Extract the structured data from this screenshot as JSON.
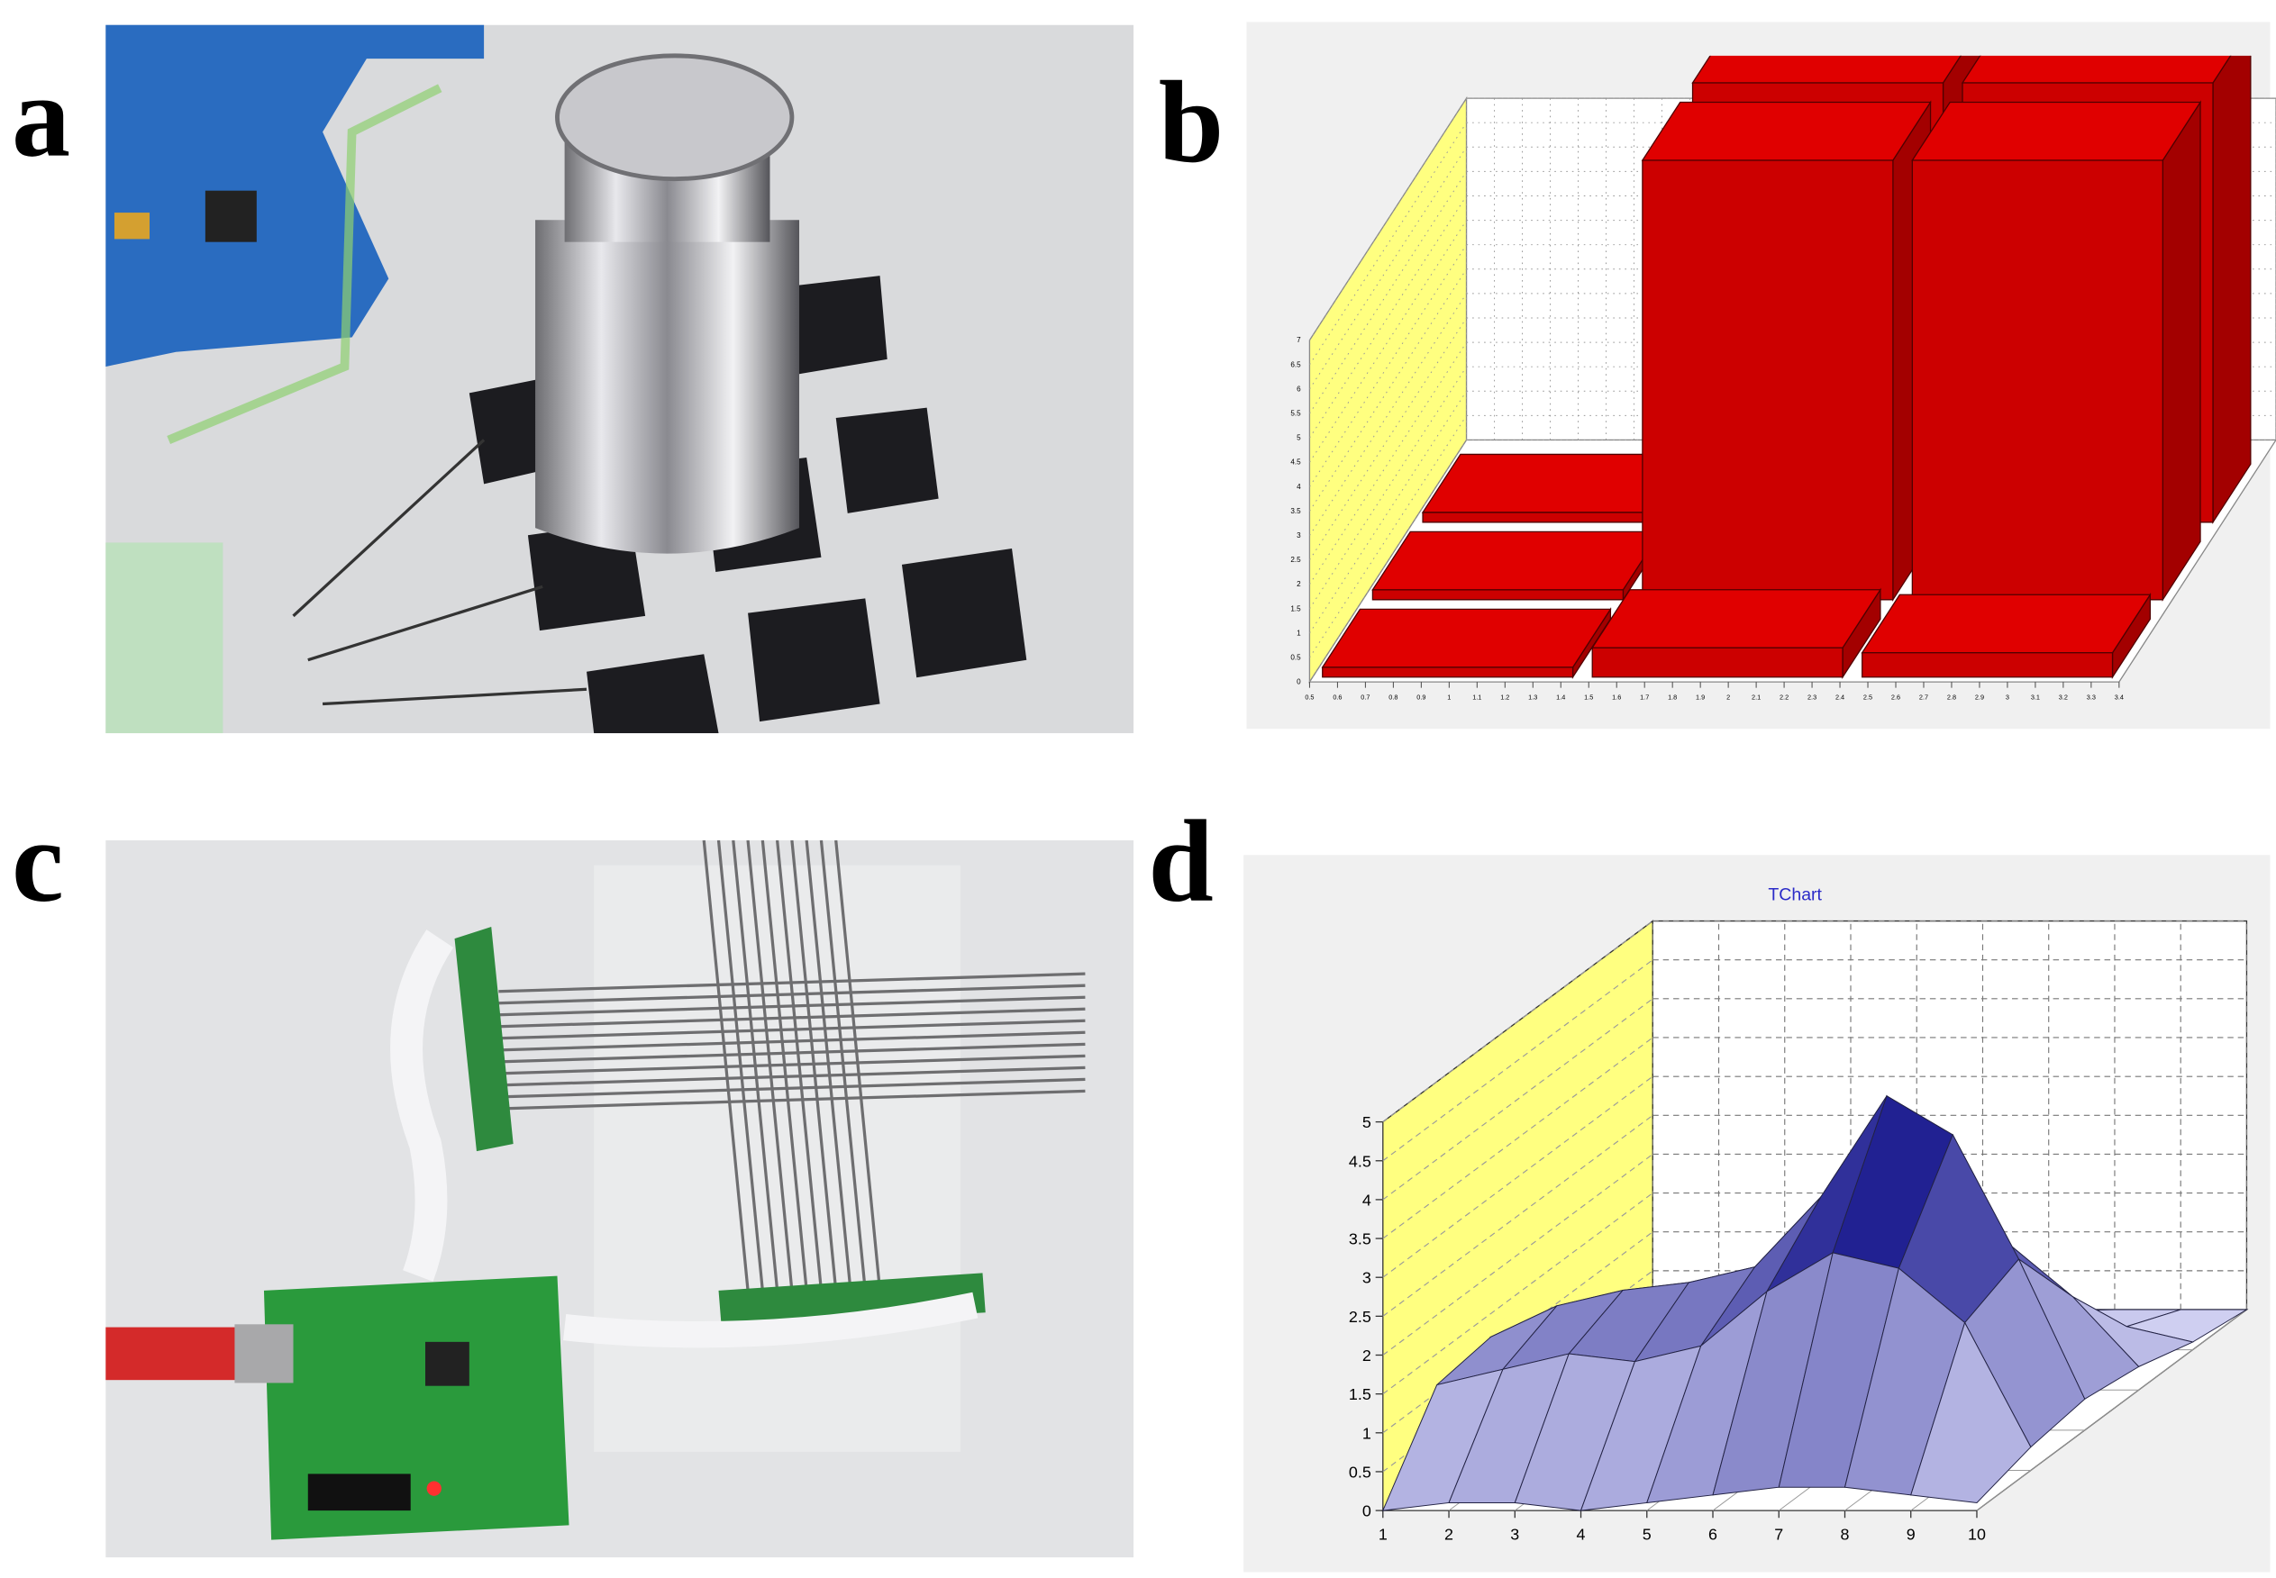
{
  "panel_labels": [
    "a",
    "b",
    "c",
    "d"
  ],
  "chart_data": [
    {
      "type": "bar3d",
      "color": "#cc0000",
      "ylim": [
        0,
        7
      ],
      "yticks": [
        0,
        0.5,
        1,
        1.5,
        2,
        2.5,
        3,
        3.5,
        4,
        4.5,
        5,
        5.5,
        6,
        6.5,
        7
      ],
      "xlim": [
        0.5,
        3.4
      ],
      "xticks": [
        0.5,
        0.6,
        0.7,
        0.8,
        0.9,
        1,
        1.1,
        1.2,
        1.3,
        1.4,
        1.5,
        1.6,
        1.7,
        1.8,
        1.9,
        2,
        2.1,
        2.2,
        2.3,
        2.4,
        2.5,
        2.6,
        2.7,
        2.8,
        2.9,
        3,
        3.1,
        3.2,
        3.3,
        3.4
      ],
      "values": [
        [
          0.2,
          0.6,
          0.5
        ],
        [
          0.2,
          9,
          9
        ],
        [
          0.2,
          9,
          9
        ]
      ]
    },
    {
      "type": "surface",
      "title": "TChart",
      "color": "#000080",
      "x": [
        1,
        2,
        3,
        4,
        5,
        6,
        7,
        8,
        9,
        10
      ],
      "xlim": [
        1,
        10
      ],
      "xticks": [
        1,
        2,
        3,
        4,
        5,
        6,
        7,
        8,
        9,
        10
      ],
      "ylim": [
        0,
        5
      ],
      "yticks": [
        0,
        0.5,
        1,
        1.5,
        2,
        2.5,
        3,
        3.5,
        4,
        4.5,
        5
      ],
      "values": [
        [
          0.0,
          0.1,
          0.1,
          0.0,
          0.1,
          0.2,
          0.3,
          0.3,
          0.2,
          0.1
        ],
        [
          1.1,
          1.3,
          1.5,
          1.4,
          1.6,
          2.3,
          2.8,
          2.6,
          1.9,
          0.3
        ],
        [
          1.2,
          1.6,
          1.8,
          1.9,
          2.1,
          3.0,
          4.3,
          3.8,
          2.2,
          0.4
        ],
        [
          0.6,
          0.8,
          1.0,
          1.1,
          1.3,
          1.5,
          2.0,
          1.9,
          1.2,
          0.3
        ],
        [
          0.2,
          0.2,
          0.3,
          0.3,
          0.4,
          0.5,
          0.6,
          0.5,
          0.3,
          0.1
        ],
        [
          0.0,
          0.0,
          0.0,
          0.0,
          0.0,
          0.0,
          0.0,
          0.0,
          0.0,
          0.0
        ]
      ]
    }
  ]
}
